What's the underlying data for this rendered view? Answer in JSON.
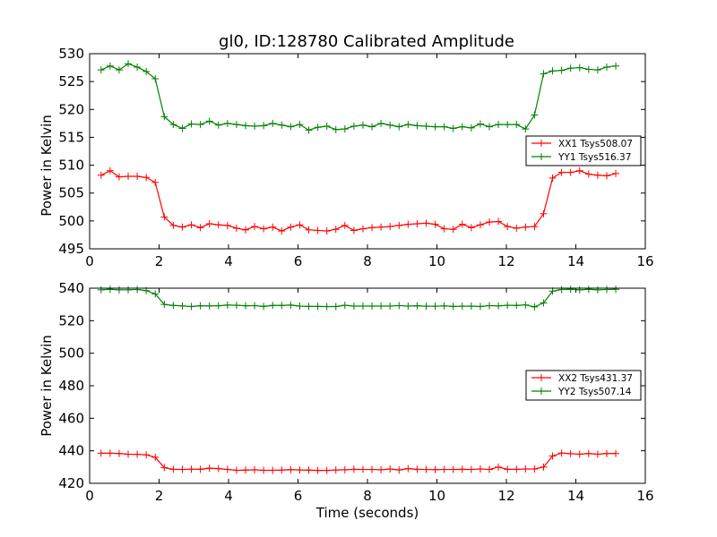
{
  "chart_data": [
    {
      "type": "line",
      "title": "gl0, ID:128780 Calibrated Amplitude",
      "xlabel": "",
      "ylabel": "Power in Kelvin",
      "xlim": [
        0,
        16
      ],
      "ylim": [
        495,
        530
      ],
      "xticks": [
        "0",
        "2",
        "4",
        "6",
        "8",
        "10",
        "12",
        "14",
        "16"
      ],
      "yticks": [
        "495",
        "500",
        "505",
        "510",
        "515",
        "520",
        "525",
        "530"
      ],
      "legend_position": "center-right",
      "grid": false,
      "x": [
        0.33,
        0.59,
        0.85,
        1.11,
        1.37,
        1.63,
        1.89,
        2.15,
        2.41,
        2.67,
        2.93,
        3.19,
        3.45,
        3.71,
        3.97,
        4.23,
        4.49,
        4.75,
        5.01,
        5.27,
        5.53,
        5.79,
        6.05,
        6.31,
        6.57,
        6.83,
        7.09,
        7.35,
        7.61,
        7.87,
        8.13,
        8.39,
        8.65,
        8.91,
        9.17,
        9.43,
        9.69,
        9.95,
        10.21,
        10.47,
        10.73,
        10.99,
        11.25,
        11.51,
        11.77,
        12.03,
        12.29,
        12.55,
        12.81,
        13.07,
        13.33,
        13.59,
        13.85,
        14.11,
        14.37,
        14.63,
        14.89,
        15.15
      ],
      "series": [
        {
          "name": "XX1 Tsys508.07",
          "color": "#ff0000",
          "values": [
            508.2,
            509.0,
            507.9,
            508.0,
            508.0,
            507.8,
            506.9,
            500.7,
            499.2,
            498.9,
            499.3,
            498.8,
            499.5,
            499.3,
            499.2,
            498.7,
            498.4,
            499.0,
            498.6,
            498.9,
            498.2,
            498.9,
            499.3,
            498.4,
            498.3,
            498.2,
            498.5,
            499.2,
            498.3,
            498.6,
            498.8,
            498.9,
            499.0,
            499.2,
            499.4,
            499.5,
            499.6,
            499.4,
            498.6,
            498.5,
            499.4,
            498.8,
            499.3,
            499.8,
            499.9,
            499.0,
            498.7,
            498.9,
            499.0,
            501.3,
            507.7,
            508.7,
            508.7,
            509.0,
            508.4,
            508.2,
            508.1,
            508.5
          ]
        },
        {
          "name": "YY1 Tsys516.37",
          "color": "#008000",
          "values": [
            527.1,
            527.8,
            527.1,
            528.2,
            527.6,
            526.8,
            525.5,
            518.7,
            517.3,
            516.6,
            517.4,
            517.3,
            517.9,
            517.2,
            517.5,
            517.3,
            517.1,
            517.0,
            517.1,
            517.5,
            517.2,
            516.9,
            517.3,
            516.3,
            516.8,
            517.0,
            516.4,
            516.5,
            517.0,
            517.2,
            516.9,
            517.5,
            517.2,
            516.9,
            517.3,
            517.1,
            517.0,
            516.9,
            516.9,
            516.6,
            516.9,
            516.7,
            517.4,
            516.9,
            517.3,
            517.3,
            517.3,
            516.5,
            519.0,
            526.4,
            526.9,
            527.0,
            527.4,
            527.5,
            527.2,
            527.1,
            527.6,
            527.8
          ]
        }
      ]
    },
    {
      "type": "line",
      "title": "",
      "xlabel": "Time (seconds)",
      "ylabel": "Power in Kelvin",
      "xlim": [
        0,
        16
      ],
      "ylim": [
        420,
        540
      ],
      "xticks": [
        "0",
        "2",
        "4",
        "6",
        "8",
        "10",
        "12",
        "14",
        "16"
      ],
      "yticks": [
        "420",
        "440",
        "460",
        "480",
        "500",
        "520",
        "540"
      ],
      "legend_position": "center-right",
      "grid": false,
      "x": [
        0.33,
        0.59,
        0.85,
        1.11,
        1.37,
        1.63,
        1.89,
        2.15,
        2.41,
        2.67,
        2.93,
        3.19,
        3.45,
        3.71,
        3.97,
        4.23,
        4.49,
        4.75,
        5.01,
        5.27,
        5.53,
        5.79,
        6.05,
        6.31,
        6.57,
        6.83,
        7.09,
        7.35,
        7.61,
        7.87,
        8.13,
        8.39,
        8.65,
        8.91,
        9.17,
        9.43,
        9.69,
        9.95,
        10.21,
        10.47,
        10.73,
        10.99,
        11.25,
        11.51,
        11.77,
        12.03,
        12.29,
        12.55,
        12.81,
        13.07,
        13.33,
        13.59,
        13.85,
        14.11,
        14.37,
        14.63,
        14.89,
        15.15
      ],
      "series": [
        {
          "name": "XX2 Tsys431.37",
          "color": "#ff0000",
          "values": [
            438.5,
            438.5,
            438.3,
            437.9,
            437.8,
            437.5,
            436.0,
            429.6,
            428.6,
            428.5,
            428.7,
            428.6,
            429.3,
            429.0,
            428.5,
            428.0,
            428.1,
            428.3,
            428.0,
            428.0,
            428.1,
            428.4,
            428.2,
            428.1,
            427.9,
            427.9,
            428.2,
            428.3,
            428.6,
            428.5,
            428.5,
            428.3,
            428.8,
            428.2,
            429.0,
            428.6,
            428.5,
            428.4,
            428.5,
            428.5,
            428.6,
            428.5,
            428.8,
            428.5,
            430.0,
            428.6,
            428.6,
            428.8,
            428.8,
            430.0,
            436.8,
            438.6,
            438.2,
            437.9,
            438.3,
            437.9,
            438.3,
            438.3
          ]
        },
        {
          "name": "YY2 Tsys507.14",
          "color": "#008000",
          "values": [
            539.0,
            539.3,
            539.0,
            539.0,
            539.2,
            538.5,
            536.5,
            530.0,
            529.4,
            529.1,
            528.7,
            529.2,
            529.1,
            529.2,
            529.6,
            529.5,
            529.2,
            529.3,
            528.8,
            529.4,
            529.4,
            529.6,
            529.0,
            528.8,
            528.8,
            528.7,
            528.7,
            529.5,
            529.0,
            529.0,
            529.0,
            529.0,
            529.0,
            529.3,
            529.0,
            529.2,
            528.9,
            528.9,
            529.1,
            528.8,
            528.9,
            529.0,
            528.7,
            529.3,
            529.1,
            529.5,
            529.4,
            529.7,
            528.5,
            530.9,
            538.2,
            539.2,
            539.3,
            539.0,
            539.3,
            539.0,
            539.2,
            539.3
          ]
        }
      ]
    }
  ]
}
